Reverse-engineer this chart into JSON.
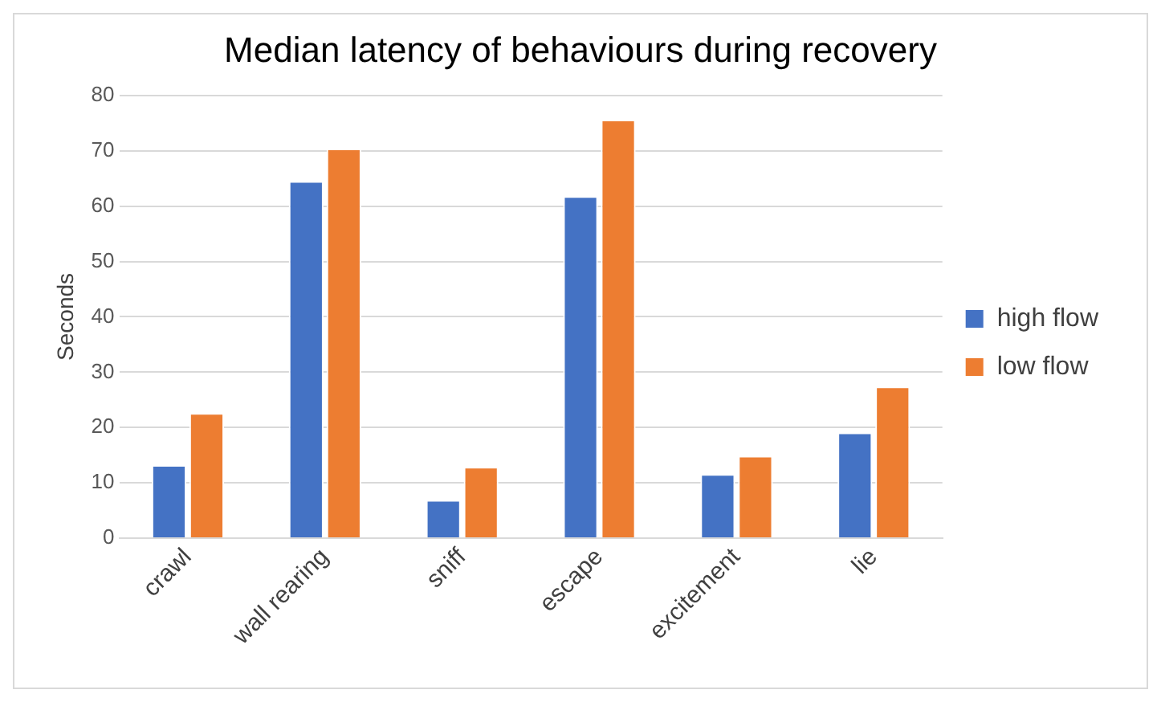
{
  "chart_data": {
    "type": "bar",
    "title": "Median latency of behaviours during recovery",
    "ylabel": "Seconds",
    "categories": [
      "crawl",
      "wall rearing",
      "sniff",
      "escape",
      "excitement",
      "lie"
    ],
    "series": [
      {
        "name": "high flow",
        "color": "#4472c4",
        "values": [
          13.2,
          64.5,
          6.9,
          61.8,
          11.6,
          19.1
        ]
      },
      {
        "name": "low flow",
        "color": "#ed7d31",
        "values": [
          22.6,
          70.4,
          12.9,
          75.6,
          14.9,
          27.4
        ]
      }
    ],
    "ylim": [
      0,
      80
    ],
    "yticks": [
      0,
      10,
      20,
      30,
      40,
      50,
      60,
      70,
      80
    ],
    "grid": "y",
    "legend": "right"
  }
}
